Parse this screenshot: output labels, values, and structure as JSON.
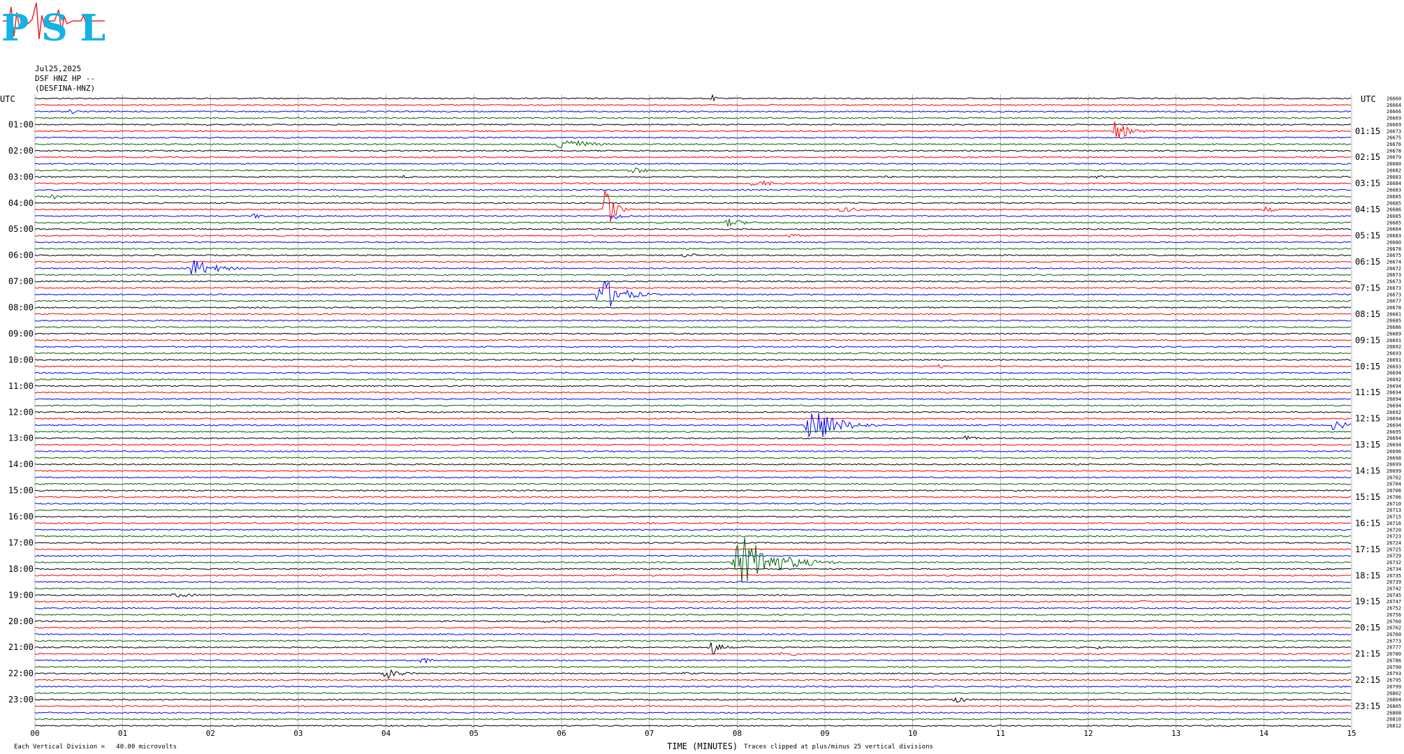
{
  "logo": {
    "text": "PSL",
    "colors": {
      "letters": "#12b3e6",
      "trace": "#e8262c"
    }
  },
  "header": {
    "date": "Jul25,2025",
    "channel": "DSF HNZ HP --",
    "station": "(DESFINA-HNZ)"
  },
  "left_label": "UTC",
  "right_label": "UTC",
  "left_times": [
    "01:00",
    "02:00",
    "03:00",
    "04:00",
    "05:00",
    "06:00",
    "07:00",
    "08:00",
    "09:00",
    "10:00",
    "11:00",
    "12:00",
    "13:00",
    "14:00",
    "15:00",
    "16:00",
    "17:00",
    "18:00",
    "19:00",
    "20:00",
    "21:00",
    "22:00",
    "23:00"
  ],
  "right_times": [
    "01:15",
    "02:15",
    "03:15",
    "04:15",
    "05:15",
    "06:15",
    "07:15",
    "08:15",
    "09:15",
    "10:15",
    "11:15",
    "12:15",
    "13:15",
    "14:15",
    "15:15",
    "16:15",
    "17:15",
    "18:15",
    "19:15",
    "20:15",
    "21:15",
    "22:15",
    "23:15"
  ],
  "x_ticks": [
    "00",
    "01",
    "02",
    "03",
    "04",
    "05",
    "06",
    "07",
    "08",
    "09",
    "10",
    "11",
    "12",
    "13",
    "14",
    "15"
  ],
  "xlabel": "TIME (MINUTES)",
  "footer_left": "Each Vertical Division =   40.00 microvolts",
  "footer_right": "Traces clipped at plus/minus 25 vertical divisions",
  "trace_colors": [
    "#000000",
    "#ff0000",
    "#0000ff",
    "#006400"
  ],
  "right_values": [
    "26660",
    "26664",
    "26666",
    "26669",
    "26669",
    "26673",
    "26675",
    "26676",
    "26678",
    "26679",
    "26680",
    "26682",
    "26683",
    "26684",
    "26683",
    "26685",
    "26685",
    "26686",
    "26685",
    "26685",
    "26684",
    "26683",
    "26680",
    "26678",
    "26675",
    "26674",
    "26672",
    "26673",
    "26673",
    "26673",
    "26673",
    "26677",
    "26678",
    "26681",
    "26685",
    "26686",
    "26689",
    "26691",
    "26692",
    "26693",
    "26691",
    "26693",
    "26694",
    "26692",
    "26694",
    "26694",
    "26694",
    "26694",
    "26692",
    "26694",
    "26694",
    "26695",
    "26694",
    "26694",
    "26696",
    "26698",
    "26699",
    "26699",
    "26702",
    "26704",
    "26706",
    "26706",
    "26710",
    "26713",
    "26715",
    "26716",
    "26720",
    "26723",
    "26724",
    "26725",
    "26729",
    "26732",
    "26734",
    "26735",
    "26739",
    "26742",
    "26745",
    "26747",
    "26752",
    "26756",
    "26760",
    "26762",
    "26760",
    "26773",
    "26777",
    "26780",
    "26786",
    "26790",
    "26793",
    "26795",
    "26799",
    "26802",
    "26804",
    "26805",
    "26808",
    "26810",
    "26812"
  ],
  "chart_data": {
    "type": "line",
    "title": "",
    "xlabel": "TIME (MINUTES)",
    "ylabel": "UTC",
    "xlim": [
      0,
      15
    ],
    "rows": 97,
    "row_minutes": 15,
    "start_time": "00:00",
    "grid": true,
    "events": [
      {
        "row": 0,
        "minute": 7.7,
        "amp": 8,
        "width": 0.06
      },
      {
        "row": 2,
        "minute": 0.4,
        "amp": 4,
        "width": 0.15
      },
      {
        "row": 5,
        "minute": 12.3,
        "amp": 14,
        "width": 0.25
      },
      {
        "row": 7,
        "minute": 6.0,
        "amp": 14,
        "width": 0.3
      },
      {
        "row": 11,
        "minute": 6.8,
        "amp": 6,
        "width": 0.25
      },
      {
        "row": 12,
        "minute": 4.2,
        "amp": 3,
        "width": 0.15
      },
      {
        "row": 12,
        "minute": 9.7,
        "amp": 3,
        "width": 0.15
      },
      {
        "row": 12,
        "minute": 12.1,
        "amp": 3,
        "width": 0.15
      },
      {
        "row": 13,
        "minute": 8.2,
        "amp": 5,
        "width": 0.35
      },
      {
        "row": 14,
        "minute": 14.4,
        "amp": 4,
        "width": 0.15
      },
      {
        "row": 15,
        "minute": 0.2,
        "amp": 4,
        "width": 0.2
      },
      {
        "row": 17,
        "minute": 6.5,
        "amp": 40,
        "width": 0.12
      },
      {
        "row": 17,
        "minute": 9.2,
        "amp": 4,
        "width": 0.4
      },
      {
        "row": 17,
        "minute": 14.0,
        "amp": 5,
        "width": 0.2
      },
      {
        "row": 18,
        "minute": 6.6,
        "amp": 6,
        "width": 0.2
      },
      {
        "row": 18,
        "minute": 2.5,
        "amp": 4,
        "width": 0.2
      },
      {
        "row": 19,
        "minute": 7.9,
        "amp": 6,
        "width": 0.3
      },
      {
        "row": 21,
        "minute": 8.6,
        "amp": 4,
        "width": 0.15
      },
      {
        "row": 24,
        "minute": 7.4,
        "amp": 4,
        "width": 0.2
      },
      {
        "row": 26,
        "minute": 1.8,
        "amp": 14,
        "width": 0.35
      },
      {
        "row": 30,
        "minute": 6.45,
        "amp": 28,
        "width": 0.3
      },
      {
        "row": 40,
        "minute": 6.8,
        "amp": 3,
        "width": 0.1
      },
      {
        "row": 41,
        "minute": 10.3,
        "amp": 3,
        "width": 0.15
      },
      {
        "row": 50,
        "minute": 8.85,
        "amp": 32,
        "width": 0.35
      },
      {
        "row": 50,
        "minute": 14.8,
        "amp": 10,
        "width": 0.2
      },
      {
        "row": 51,
        "minute": 5.4,
        "amp": 3,
        "width": 0.15
      },
      {
        "row": 52,
        "minute": 10.6,
        "amp": 4,
        "width": 0.2
      },
      {
        "row": 71,
        "minute": 8.05,
        "amp": 40,
        "width": 0.5
      },
      {
        "row": 76,
        "minute": 1.6,
        "amp": 4,
        "width": 0.3
      },
      {
        "row": 77,
        "minute": 12.6,
        "amp": 3,
        "width": 0.2
      },
      {
        "row": 77,
        "minute": 14.0,
        "amp": 3,
        "width": 0.2
      },
      {
        "row": 80,
        "minute": 5.8,
        "amp": 2,
        "width": 0.6
      },
      {
        "row": 84,
        "minute": 7.7,
        "amp": 14,
        "width": 0.15
      },
      {
        "row": 84,
        "minute": 12.1,
        "amp": 3,
        "width": 0.1
      },
      {
        "row": 85,
        "minute": 8.5,
        "amp": 6,
        "width": 0.2
      },
      {
        "row": 86,
        "minute": 4.4,
        "amp": 6,
        "width": 0.15
      },
      {
        "row": 88,
        "minute": 4.0,
        "amp": 8,
        "width": 0.25
      },
      {
        "row": 88,
        "minute": 7.4,
        "amp": 3,
        "width": 0.15
      },
      {
        "row": 92,
        "minute": 10.5,
        "amp": 5,
        "width": 0.2
      },
      {
        "row": 96,
        "minute": 14.2,
        "amp": 3,
        "width": 0.1
      }
    ]
  }
}
